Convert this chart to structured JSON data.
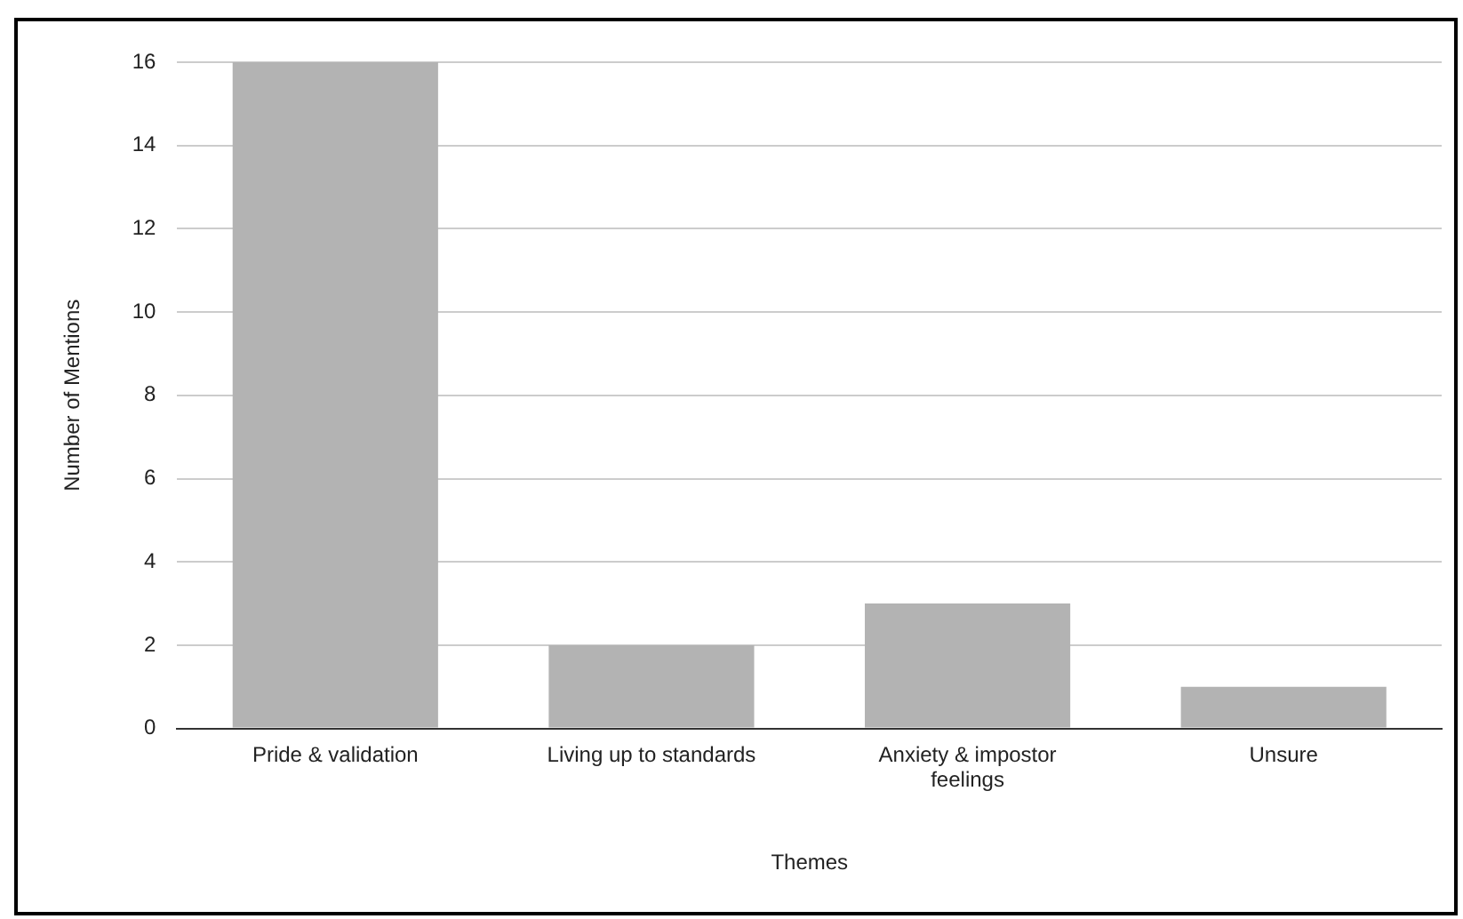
{
  "chart_data": {
    "type": "bar",
    "xlabel": "Themes",
    "ylabel": "Number of Mentions",
    "categories": [
      "Pride & validation",
      "Living up to standards",
      "Anxiety & impostor feelings",
      "Unsure"
    ],
    "values": [
      16,
      2,
      3,
      1
    ],
    "color": "#b3b3b3",
    "ylim": [
      0,
      16
    ],
    "yticks": [
      0,
      2,
      4,
      6,
      8,
      10,
      12,
      14,
      16
    ],
    "grid": "y",
    "legend": false
  }
}
